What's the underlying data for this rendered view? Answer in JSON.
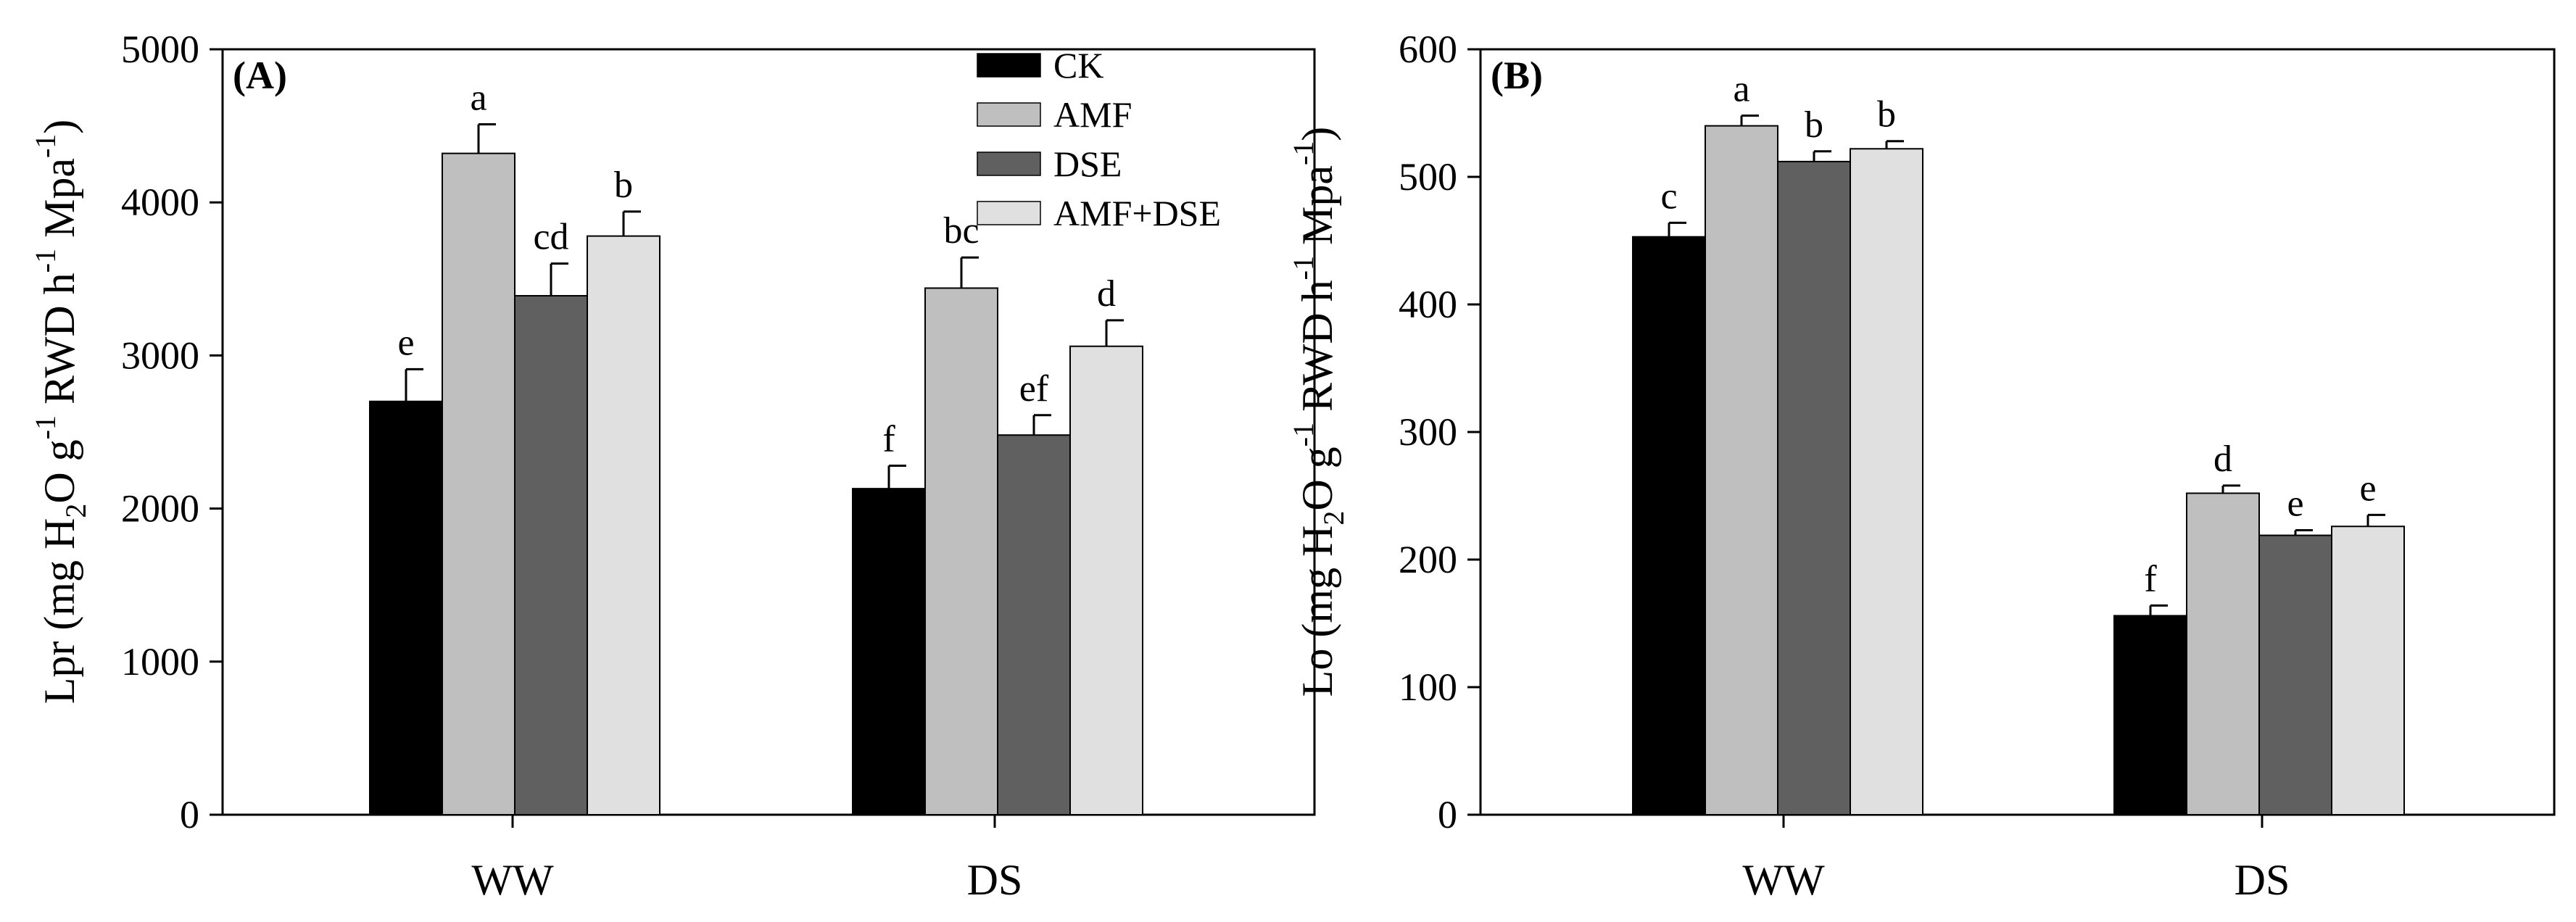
{
  "chart_data": [
    {
      "type": "bar",
      "panel_label": "(A)",
      "categories": [
        "WW",
        "DS"
      ],
      "ylabel": {
        "main": "Lpr (mg H",
        "sub1": "2",
        "mid": "O g",
        "sup1": "-1",
        "mid2": " RWD h",
        "sup2": "-1",
        "mid3": " Mpa",
        "sup3": "-1",
        "tail": ")"
      },
      "ylim": [
        0,
        5000
      ],
      "yticks": [
        0,
        1000,
        2000,
        3000,
        4000,
        5000
      ],
      "series": [
        {
          "name": "CK",
          "color": "#000000",
          "values": [
            2700,
            2130
          ],
          "errors": [
            210,
            150
          ],
          "letters": [
            "e",
            "f"
          ]
        },
        {
          "name": "AMF",
          "color": "#bfbfbf",
          "values": [
            4320,
            3440
          ],
          "errors": [
            190,
            200
          ],
          "letters": [
            "a",
            "bc"
          ]
        },
        {
          "name": "DSE",
          "color": "#606060",
          "values": [
            3390,
            2480
          ],
          "errors": [
            210,
            130
          ],
          "letters": [
            "cd",
            "ef"
          ]
        },
        {
          "name": "AMF+DSE",
          "color": "#e0e0e0",
          "values": [
            3780,
            3060
          ],
          "errors": [
            160,
            170
          ],
          "letters": [
            "b",
            "d"
          ]
        }
      ],
      "legend": {
        "position": "top-right",
        "entries": [
          "CK",
          "AMF",
          "DSE",
          "AMF+DSE"
        ]
      }
    },
    {
      "type": "bar",
      "panel_label": "(B)",
      "categories": [
        "WW",
        "DS"
      ],
      "ylabel": {
        "main": "Lo (mg H",
        "sub1": "2",
        "mid": "O g",
        "sup1": "-1",
        "mid2": " RWD h",
        "sup2": "-1",
        "mid3": " Mpa",
        "sup3": "-1",
        "tail": ")"
      },
      "ylim": [
        0,
        600
      ],
      "yticks": [
        0,
        100,
        200,
        300,
        400,
        500,
        600
      ],
      "series": [
        {
          "name": "CK",
          "color": "#000000",
          "values": [
            453,
            156
          ],
          "errors": [
            11,
            8
          ],
          "letters": [
            "c",
            "f"
          ]
        },
        {
          "name": "AMF",
          "color": "#bfbfbf",
          "values": [
            540,
            252
          ],
          "errors": [
            8,
            6
          ],
          "letters": [
            "a",
            "d"
          ]
        },
        {
          "name": "DSE",
          "color": "#606060",
          "values": [
            512,
            219
          ],
          "errors": [
            8,
            4
          ],
          "letters": [
            "b",
            "e"
          ]
        },
        {
          "name": "AMF+DSE",
          "color": "#e0e0e0",
          "values": [
            522,
            226
          ],
          "errors": [
            6,
            9
          ],
          "letters": [
            "b",
            "e"
          ]
        }
      ]
    }
  ]
}
